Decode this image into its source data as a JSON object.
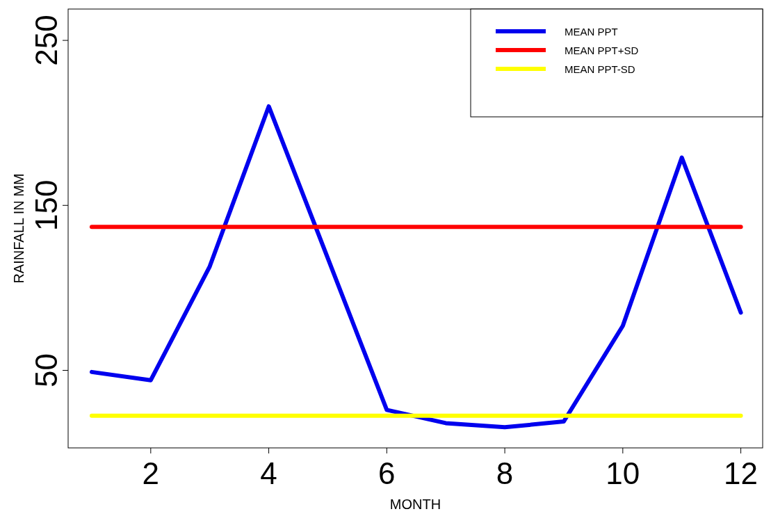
{
  "chart_data": {
    "type": "line",
    "xlabel": "MONTH",
    "ylabel": "RAINFALL IN MM",
    "xlim": [
      0.6,
      12.37
    ],
    "ylim": [
      3,
      269
    ],
    "xticks": [
      2,
      4,
      6,
      8,
      10,
      12
    ],
    "yticks": [
      50,
      150,
      250
    ],
    "x": [
      1,
      2,
      3,
      4,
      5,
      6,
      7,
      8,
      9,
      10,
      11,
      12
    ],
    "series": [
      {
        "name": "MEAN PPT",
        "color": "#0000ee",
        "values": [
          49,
          44,
          113,
          210,
          118,
          26,
          18,
          15.5,
          19,
          77,
          179,
          85
        ]
      },
      {
        "name": "MEAN PPT+SD",
        "color": "#ff0000",
        "values": [
          137,
          137,
          137,
          137,
          137,
          137,
          137,
          137,
          137,
          137,
          137,
          137
        ]
      },
      {
        "name": "MEAN PPT-SD",
        "color": "#ffff00",
        "values": [
          22.5,
          22.5,
          22.5,
          22.5,
          22.5,
          22.5,
          22.5,
          22.5,
          22.5,
          22.5,
          22.5,
          22.5
        ]
      }
    ],
    "legend": "top right",
    "grid": false,
    "line_style": "solid",
    "marker": "none"
  }
}
